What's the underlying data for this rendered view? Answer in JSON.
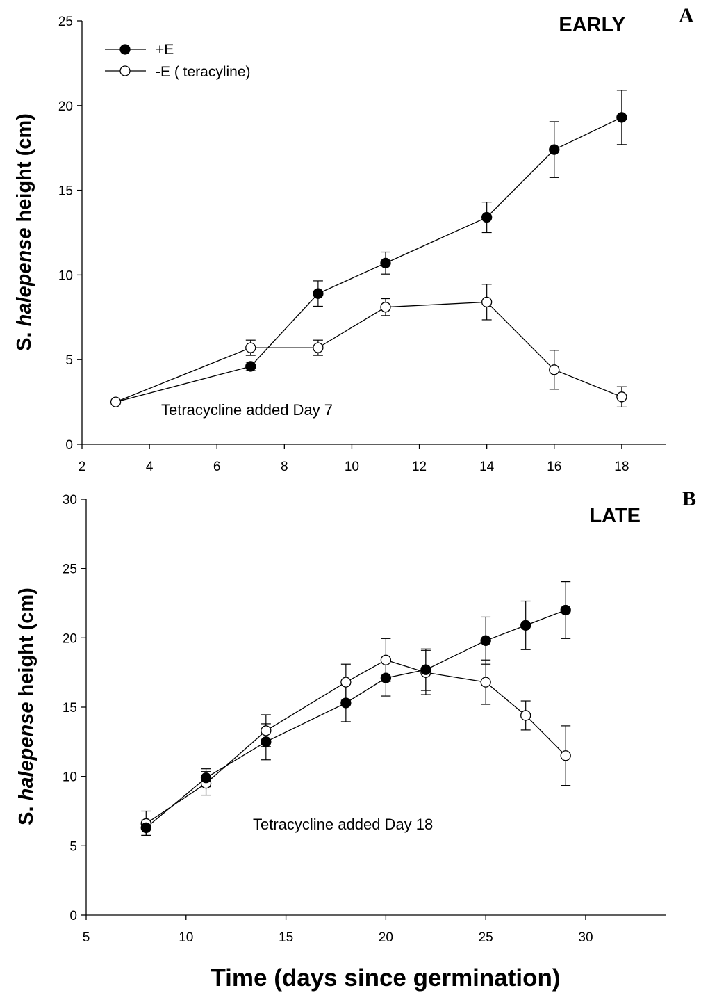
{
  "chart_data": [
    {
      "type": "line",
      "panel": "A",
      "title": "EARLY",
      "xlabel": "",
      "ylabel": "S. halepense height (cm)",
      "ylabel_parts": [
        "S. ",
        "halepense",
        " height (cm)"
      ],
      "xlim": [
        2,
        19.3
      ],
      "ylim": [
        0,
        25
      ],
      "xticks": [
        2,
        4,
        6,
        8,
        10,
        12,
        14,
        16,
        18
      ],
      "yticks": [
        0,
        5,
        10,
        15,
        20,
        25
      ],
      "annotation": "Tetracycline added Day 7",
      "legend_position": "top-left",
      "series": [
        {
          "name": "+E",
          "marker": "filled-circle",
          "x": [
            7,
            9,
            11,
            14,
            16,
            18
          ],
          "y": [
            4.6,
            8.9,
            10.7,
            13.4,
            17.4,
            19.3
          ],
          "error": [
            0.25,
            0.75,
            0.65,
            0.9,
            1.65,
            1.6
          ]
        },
        {
          "name": "-E ( teracyline)",
          "marker": "open-circle",
          "x": [
            3,
            7,
            9,
            11,
            14,
            16,
            18
          ],
          "y": [
            2.5,
            5.7,
            5.7,
            8.1,
            8.4,
            4.4,
            2.8
          ],
          "error": [
            0,
            0.45,
            0.45,
            0.5,
            1.05,
            1.15,
            0.6
          ]
        }
      ],
      "connectors": [
        {
          "from": [
            3,
            2.5
          ],
          "to": [
            7,
            4.6
          ]
        }
      ]
    },
    {
      "type": "line",
      "panel": "B",
      "title": "LATE",
      "xlabel": "Time (days since germination)",
      "ylabel": "S. halepense height (cm)",
      "ylabel_parts": [
        "S. ",
        "halepense",
        " height (cm)"
      ],
      "xlim": [
        5,
        34
      ],
      "ylim": [
        0,
        30
      ],
      "xticks": [
        5,
        10,
        15,
        20,
        25,
        30
      ],
      "yticks": [
        0,
        5,
        10,
        15,
        20,
        25,
        30
      ],
      "annotation": "Tetracycline added  Day 18",
      "series": [
        {
          "name": "+E",
          "marker": "filled-circle",
          "x": [
            8,
            11,
            14,
            18,
            20,
            22,
            25,
            27,
            29
          ],
          "y": [
            6.3,
            9.9,
            12.5,
            15.3,
            17.1,
            17.7,
            19.8,
            20.9,
            22.0
          ],
          "error": [
            0.55,
            0.65,
            1.3,
            1.35,
            1.3,
            1.5,
            1.7,
            1.75,
            2.05
          ]
        },
        {
          "name": "-E ( teracyline)",
          "marker": "open-circle",
          "x": [
            8,
            11,
            14,
            18,
            20,
            22,
            25,
            27,
            29
          ],
          "y": [
            6.6,
            9.5,
            13.3,
            16.8,
            18.4,
            17.5,
            16.8,
            14.4,
            11.5
          ],
          "error": [
            0.9,
            0.85,
            1.15,
            1.3,
            1.55,
            1.6,
            1.6,
            1.05,
            2.15
          ]
        }
      ]
    }
  ]
}
